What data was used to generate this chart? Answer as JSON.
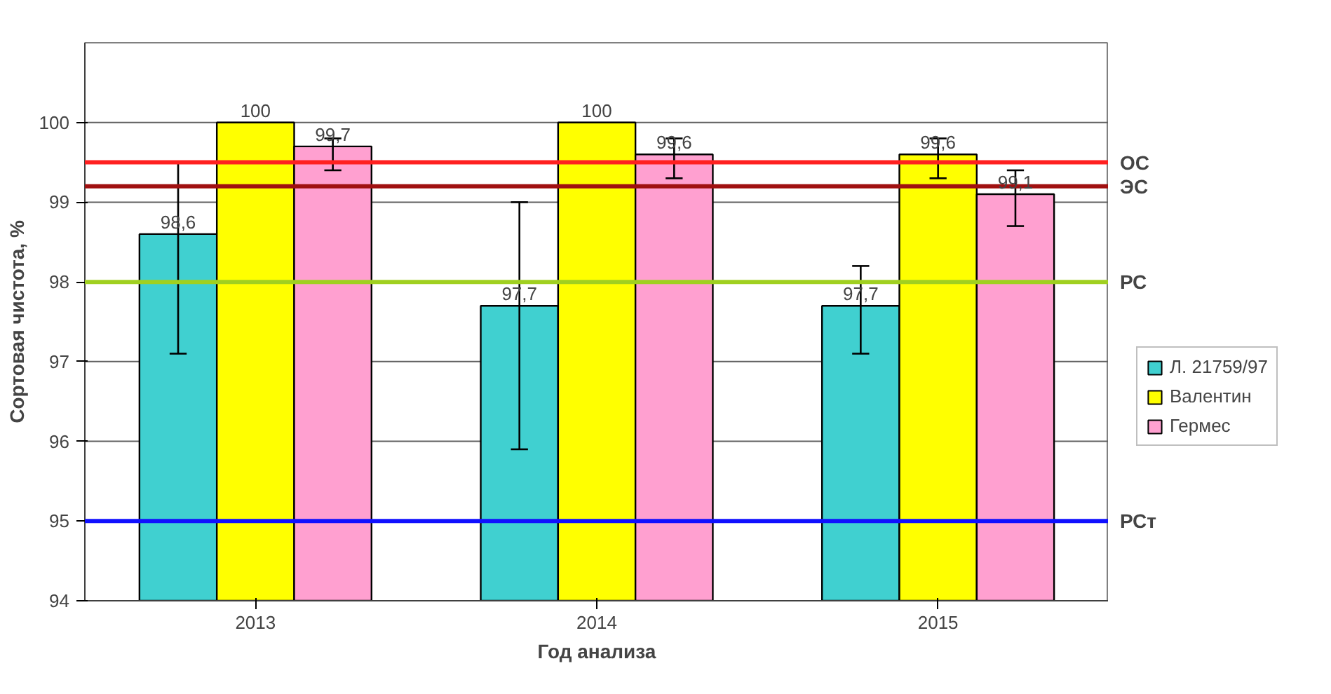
{
  "chart_data": {
    "type": "bar",
    "xlabel": "Год анализа",
    "ylabel": "Сортовая чистота, %",
    "categories": [
      "2013",
      "2014",
      "2015"
    ],
    "series": [
      {
        "name": "Л. 21759/97",
        "color": "#40d0d0",
        "values": [
          98.6,
          97.7,
          97.7
        ],
        "value_labels": [
          "98,6",
          "97,7",
          "97,7"
        ],
        "errors": [
          [
            97.1,
            99.5
          ],
          [
            95.9,
            99.0
          ],
          [
            97.1,
            98.2
          ]
        ]
      },
      {
        "name": "Валентин",
        "color": "#ffff00",
        "values": [
          100,
          100,
          99.6
        ],
        "value_labels": [
          "100",
          "100",
          "99,6"
        ],
        "errors": [
          null,
          null,
          [
            99.3,
            99.8
          ]
        ]
      },
      {
        "name": "Гермес",
        "color": "#ffa0d0",
        "values": [
          99.7,
          99.6,
          99.1
        ],
        "value_labels": [
          "99,7",
          "99,6",
          "99,1"
        ],
        "errors": [
          [
            99.4,
            99.8
          ],
          [
            99.3,
            99.8
          ],
          [
            98.7,
            99.4
          ]
        ]
      }
    ],
    "ylim": [
      94,
      101
    ],
    "yticks": [
      94,
      95,
      96,
      97,
      98,
      99,
      100
    ],
    "grid": "y",
    "legend": "right",
    "ref_lines": [
      {
        "axis": "y",
        "value": 99.5,
        "label": "ОС",
        "color": "#ff2020"
      },
      {
        "axis": "y",
        "value": 99.2,
        "label": "ЭС",
        "color": "#a01010"
      },
      {
        "axis": "y",
        "value": 98,
        "label": "РС",
        "color": "#a0d020"
      },
      {
        "axis": "y",
        "value": 95,
        "label": "РСт",
        "color": "#1010ff"
      }
    ]
  }
}
